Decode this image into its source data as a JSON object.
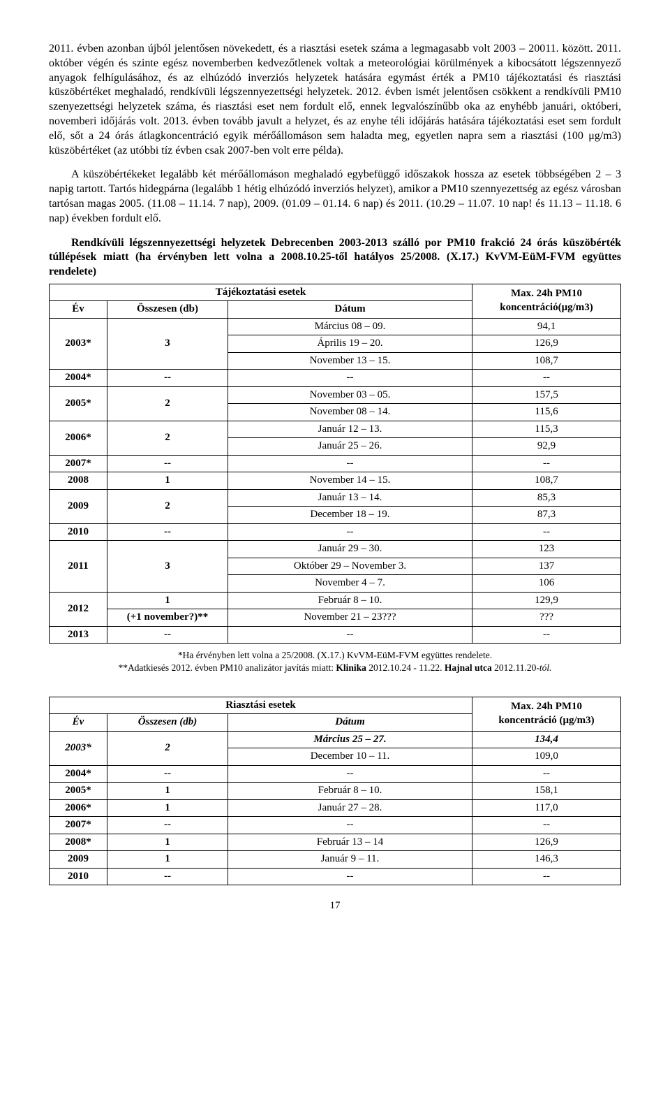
{
  "paragraphs": {
    "p1": "2011. évben azonban újból jelentősen növekedett, és a riasztási esetek száma a legmagasabb volt 2003 – 20011. között. 2011. október végén és szinte egész novemberben kedvezőtlenek voltak a meteorológiai körülmények a kibocsátott légszennyező anyagok felhígulásához, és az elhúzódó inverziós helyzetek hatására egymást érték a PM10 tájékoztatási és riasztási küszöbértéket meghaladó, rendkívüli légszennyezettségi helyzetek. 2012. évben ismét jelentősen csökkent a rendkívüli PM10 szenyezettségi helyzetek száma, és riasztási eset nem fordult elő, ennek legvalószínűbb oka az enyhébb januári, októberi, novemberi időjárás volt. 2013. évben tovább javult a helyzet, és az enyhe téli időjárás hatására tájékoztatási eset sem fordult elő, sőt a 24 órás átlagkoncentráció egyik mérőállomáson sem haladta meg, egyetlen napra sem a riasztási (100 μg/m3) küszöbértéket (az utóbbi tíz évben csak 2007-ben volt erre példa).",
    "p2": "A küszöbértékeket legalább két mérőállomáson meghaladó egybefüggő időszakok hossza az esetek többségében 2 – 3 napig tartott. Tartós hidegpárna (legalább 1 hétig elhúzódó inverziós helyzet), amikor a PM10 szennyezettség az egész városban tartósan magas 2005. (11.08 – 11.14. 7 nap), 2009. (01.09 – 01.14. 6 nap) és 2011. (10.29 – 11.07. 10 nap! és 11.13 – 11.18. 6 nap) években fordult elő."
  },
  "heading1": "Rendkívüli légszennyezettségi helyzetek Debrecenben 2003-2013 szálló por PM10 frakció 24 órás küszöbérték túllépések miatt (ha érvényben lett volna a 2008.10.25-től hatályos 25/2008. (X.17.) KvVM-EüM-FVM együttes rendelete)",
  "table1": {
    "header_top": "Tájékoztatási esetek",
    "header_max": "Max. 24h PM10",
    "col_year": "Év",
    "col_total": "Összesen (db)",
    "col_date": "Dátum",
    "col_conc": "koncentráció(μg/m3)",
    "rows": [
      {
        "year": "2003*",
        "total": "3",
        "dates": [
          "Március 08 – 09.",
          "Április 19 – 20.",
          "November 13 – 15."
        ],
        "vals": [
          "94,1",
          "126,9",
          "108,7"
        ]
      },
      {
        "year": "2004*",
        "total": "--",
        "dates": [
          "--"
        ],
        "vals": [
          "--"
        ]
      },
      {
        "year": "2005*",
        "total": "2",
        "dates": [
          "November 03 – 05.",
          "November 08 – 14."
        ],
        "vals": [
          "157,5",
          "115,6"
        ]
      },
      {
        "year": "2006*",
        "total": "2",
        "dates": [
          "Január 12 – 13.",
          "Január 25 – 26."
        ],
        "vals": [
          "115,3",
          "92,9"
        ]
      },
      {
        "year": "2007*",
        "total": "--",
        "dates": [
          "--"
        ],
        "vals": [
          "--"
        ]
      },
      {
        "year": "2008",
        "total": "1",
        "dates": [
          "November 14 – 15."
        ],
        "vals": [
          "108,7"
        ]
      },
      {
        "year": "2009",
        "total": "2",
        "dates": [
          "Január 13 – 14.",
          "December 18 – 19."
        ],
        "vals": [
          "85,3",
          "87,3"
        ]
      },
      {
        "year": "2010",
        "total": "--",
        "dates": [
          "--"
        ],
        "vals": [
          "--"
        ]
      },
      {
        "year": "2011",
        "total": "3",
        "dates": [
          "Január 29 – 30.",
          "Október 29 – November 3.",
          "November 4 – 7."
        ],
        "vals": [
          "123",
          "137",
          "106"
        ]
      },
      {
        "year": "2012",
        "total": "1\n(+1 november?)**",
        "dates": [
          "Február 8 – 10.",
          "November 21 – 23???"
        ],
        "vals": [
          "129,9",
          "???"
        ]
      },
      {
        "year": "2013",
        "total": "--",
        "dates": [
          "--"
        ],
        "vals": [
          "--"
        ]
      }
    ]
  },
  "footnote1": "*Ha érvényben lett volna a 25/2008. (X.17.) KvVM-EüM-FVM együttes rendelete.",
  "footnote2_prefix": "**Adatkiesés 2012. évben PM10 analizátor javítás miatt: ",
  "footnote2_bold1": "Klinika",
  "footnote2_mid": " 2012.10.24 - 11.22. ",
  "footnote2_bold2": "Hajnal utca",
  "footnote2_tail": " 2012.11.20-",
  "footnote2_italic": "tól.",
  "table2": {
    "header_top": "Riasztási esetek",
    "header_max": "Max. 24h PM10",
    "col_year": "Év",
    "col_total": "Összesen (db)",
    "col_date": "Dátum",
    "col_conc": "koncentráció (μg/m3)",
    "rows": [
      {
        "year": "2003*",
        "total": "2",
        "dates": [
          "Március 25 – 27.",
          "December 10 – 11."
        ],
        "vals": [
          "134,4",
          "109,0"
        ]
      },
      {
        "year": "2004*",
        "total": "--",
        "dates": [
          "--"
        ],
        "vals": [
          "--"
        ]
      },
      {
        "year": "2005*",
        "total": "1",
        "dates": [
          "Február 8 – 10."
        ],
        "vals": [
          "158,1"
        ]
      },
      {
        "year": "2006*",
        "total": "1",
        "dates": [
          "Január 27 – 28."
        ],
        "vals": [
          "117,0"
        ]
      },
      {
        "year": "2007*",
        "total": "--",
        "dates": [
          "--"
        ],
        "vals": [
          "--"
        ]
      },
      {
        "year": "2008*",
        "total": "1",
        "dates": [
          "Február 13 – 14"
        ],
        "vals": [
          "126,9"
        ]
      },
      {
        "year": "2009",
        "total": "1",
        "dates": [
          "Január 9 – 11."
        ],
        "vals": [
          "146,3"
        ]
      },
      {
        "year": "2010",
        "total": "--",
        "dates": [
          "--"
        ],
        "vals": [
          "--"
        ]
      }
    ]
  },
  "pagenum": "17"
}
